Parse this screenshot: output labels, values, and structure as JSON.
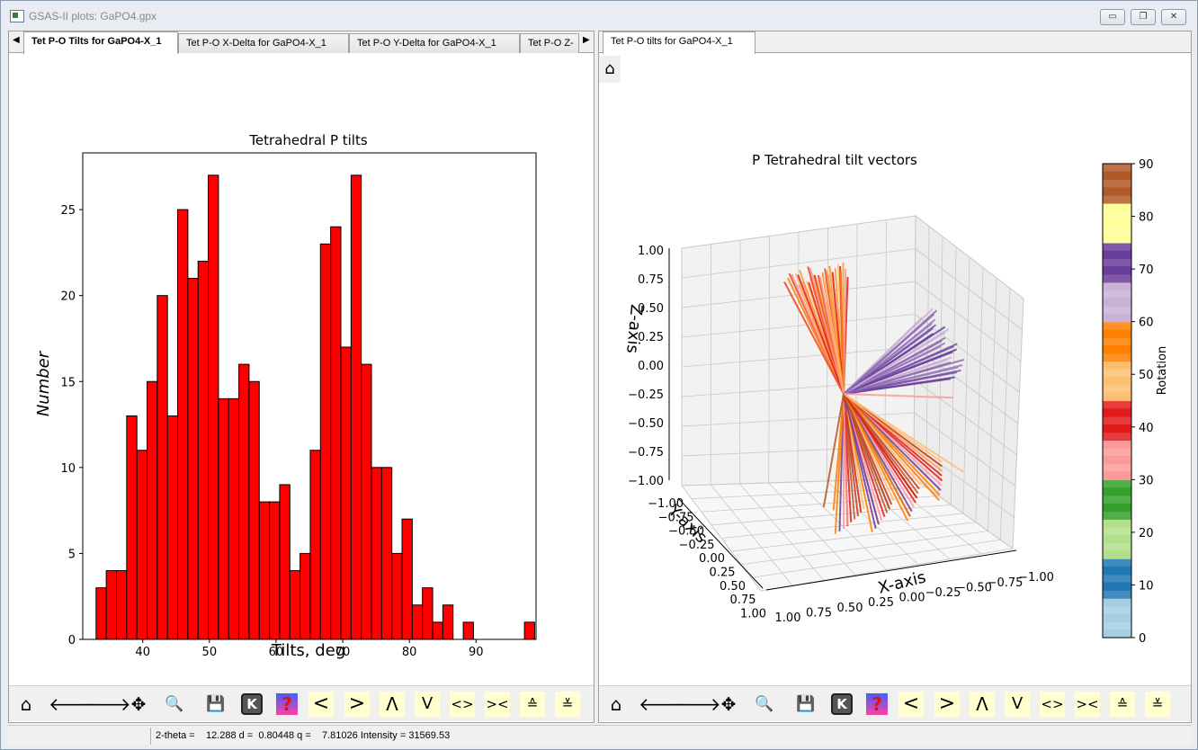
{
  "window": {
    "title": "GSAS-II plots: GaPO4.gpx",
    "minimize": "▭",
    "restore": "❐",
    "close": "✕"
  },
  "left_pane": {
    "tabs": [
      {
        "label": "Tet P-O Tilts for GaPO4-X_1",
        "active": true
      },
      {
        "label": "Tet P-O X-Delta for GaPO4-X_1",
        "active": false
      },
      {
        "label": "Tet P-O Y-Delta for GaPO4-X_1",
        "active": false
      },
      {
        "label": "Tet P-O Z-",
        "active": false
      }
    ],
    "tab_left_arrow": "◀",
    "tab_right_arrow": "▶"
  },
  "right_pane": {
    "tabs": [
      {
        "label": "Tet P-O tilts for GaPO4-X_1",
        "active": true
      }
    ]
  },
  "toolbar": {
    "home": "⌂",
    "back": "🡐",
    "forward": "🡒",
    "pan": "✥",
    "zoom": "🔍",
    "save": "💾",
    "k": "K",
    "help": "?",
    "lt": "<",
    "gt": ">",
    "up": "Λ",
    "down": "V",
    "expand_h": "<>",
    "shrink_h": "><",
    "expand_v": "≙",
    "shrink_v": "≚"
  },
  "status": {
    "text": "2-theta =    12.288 d =  0.80448 q =    7.81026 Intensity = 31569.53"
  },
  "chart_data": [
    {
      "type": "bar",
      "title": "Tetrahedral P tilts",
      "xlabel": "Tilts, deg",
      "ylabel": "Number",
      "bar_color": "#ff0000",
      "xlim": [
        31,
        99
      ],
      "ylim": [
        0,
        28.3
      ],
      "xticks": [
        40,
        50,
        60,
        70,
        80,
        90
      ],
      "yticks": [
        0,
        5,
        10,
        15,
        20,
        25
      ],
      "bin_width": 1.53,
      "bin_start": 33.0,
      "values": [
        3,
        4,
        4,
        13,
        11,
        15,
        20,
        13,
        25,
        21,
        22,
        27,
        14,
        14,
        16,
        15,
        8,
        8,
        9,
        4,
        5,
        11,
        23,
        24,
        17,
        27,
        16,
        10,
        10,
        5,
        7,
        2,
        3,
        1,
        2,
        0,
        1,
        0,
        0,
        0,
        0,
        0,
        1
      ]
    },
    {
      "type": "scatter",
      "title": "P Tetrahedral tilt vectors",
      "xlabel": "X-axis",
      "ylabel": "Y-axis",
      "zlabel": "Z-axis",
      "ticks": [
        "1.00",
        "0.75",
        "0.50",
        "0.25",
        "0.00",
        "−0.25",
        "−0.50",
        "−0.75",
        "−1.00"
      ],
      "colorbar": {
        "label": "Rotation",
        "min": 0,
        "max": 90,
        "ticks": [
          0,
          10,
          20,
          30,
          40,
          50,
          60,
          70,
          80,
          90
        ]
      }
    }
  ]
}
